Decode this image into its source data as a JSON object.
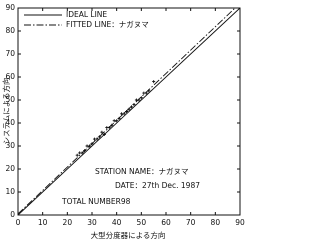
{
  "chart_data": {
    "type": "scatter",
    "x_label": "大型分度器による方向",
    "y_label": "システムによる方向",
    "xlim": [
      0,
      90
    ],
    "ylim": [
      0,
      90
    ],
    "xticks": [
      0,
      10,
      20,
      30,
      40,
      50,
      60,
      70,
      80,
      90
    ],
    "yticks": [
      0,
      10,
      20,
      30,
      40,
      50,
      60,
      70,
      80,
      90
    ],
    "color": "#111111",
    "series": [
      {
        "name": "IDEAL LINE",
        "style": "solid",
        "x": [
          0,
          90
        ],
        "values": [
          0,
          90
        ]
      },
      {
        "name": "FITTED LINE：ナガヌマ",
        "style": "dashdot",
        "x": [
          0,
          88
        ],
        "values": [
          0.5,
          90
        ]
      }
    ],
    "points": {
      "x": [
        24,
        25,
        26,
        27,
        28,
        29,
        30,
        31,
        32,
        33,
        34,
        35,
        36,
        37,
        38,
        39,
        40,
        41,
        42,
        43,
        44,
        45,
        46,
        47,
        48,
        49,
        50,
        51,
        52,
        53,
        55
      ],
      "values": [
        26,
        27,
        27,
        28,
        30,
        30,
        31,
        33,
        33,
        34,
        36,
        35,
        38,
        38,
        39,
        41,
        41,
        42,
        44,
        44,
        45,
        46,
        47,
        48,
        50,
        50,
        51,
        53,
        53,
        54,
        58
      ]
    },
    "annotations": [
      "STATION NAME：ナガヌマ",
      "DATE：27th Dec. 1987",
      "TOTAL NUMBER98"
    ]
  }
}
